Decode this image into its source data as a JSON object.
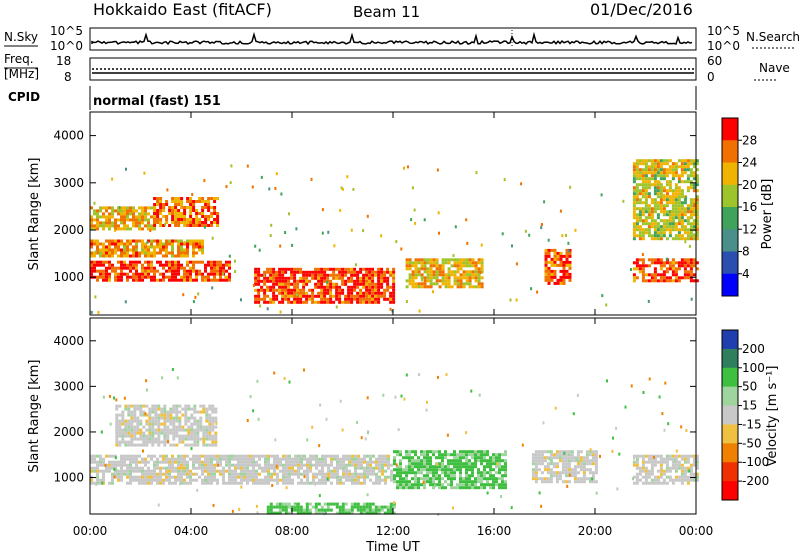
{
  "header": {
    "title": "Hokkaido East (fitACF)",
    "beam": "Beam 11",
    "date": "01/Dec/2016"
  },
  "status_panels": {
    "nsky_label": "N.Sky",
    "nsky_ticks": [
      "10^5",
      "10^0"
    ],
    "nsearch_label": "N.Search",
    "freq_label": "Freq.",
    "freq_unit": "[MHz]",
    "freq_ticks": [
      "18",
      "8"
    ],
    "nave_label": "Nave",
    "nave_ticks": [
      "60",
      "0"
    ],
    "cpid_label": "CPID",
    "cpid_value": "normal (fast) 151"
  },
  "chart_data": [
    {
      "type": "heatmap",
      "panel": "power",
      "ylabel": "Slant Range [km]",
      "ylim": [
        200,
        4500
      ],
      "yticks": [
        1000,
        2000,
        3000,
        4000
      ],
      "colorbar_label": "Power [dB]",
      "colorbar_ticks": [
        4,
        8,
        12,
        16,
        20,
        24,
        28
      ],
      "colorbar_colors": [
        "#0000ff",
        "#2a4fb0",
        "#4a8f8a",
        "#3fa35b",
        "#9ec42c",
        "#f0b400",
        "#f07000",
        "#ff0000"
      ],
      "regions": [
        {
          "t0": 0.0,
          "t1": 5.5,
          "r0": 950,
          "r1": 1350,
          "level": 28
        },
        {
          "t0": 0.0,
          "t1": 4.5,
          "r0": 1450,
          "r1": 1800,
          "level": 24
        },
        {
          "t0": 0.0,
          "t1": 2.5,
          "r0": 2000,
          "r1": 2500,
          "level": 22
        },
        {
          "t0": 2.5,
          "t1": 5.0,
          "r0": 2100,
          "r1": 2700,
          "level": 26
        },
        {
          "t0": 6.5,
          "t1": 12.0,
          "r0": 500,
          "r1": 1200,
          "level": 28
        },
        {
          "t0": 12.5,
          "t1": 15.5,
          "r0": 800,
          "r1": 1400,
          "level": 22
        },
        {
          "t0": 18.0,
          "t1": 19.0,
          "r0": 900,
          "r1": 1600,
          "level": 28
        },
        {
          "t0": 21.5,
          "t1": 24.0,
          "r0": 900,
          "r1": 1400,
          "level": 28
        },
        {
          "t0": 21.5,
          "t1": 24.0,
          "r0": 1800,
          "r1": 3500,
          "level": 20
        }
      ]
    },
    {
      "type": "heatmap",
      "panel": "velocity",
      "ylabel": "Slant Range [km]",
      "ylim": [
        200,
        4500
      ],
      "yticks": [
        1000,
        2000,
        3000,
        4000
      ],
      "xlabel": "Time UT",
      "xticks": [
        "00:00",
        "04:00",
        "08:00",
        "12:00",
        "16:00",
        "20:00",
        "00:00"
      ],
      "xlim_hours": [
        0,
        24
      ],
      "colorbar_label": "Velocity [m s⁻¹]",
      "colorbar_ticks": [
        200,
        100,
        50,
        15,
        -15,
        -50,
        -100,
        -200
      ],
      "colorbar_colors": [
        "#1f3fae",
        "#2f7f5f",
        "#3fbf3f",
        "#9fd49f",
        "#c8c8c8",
        "#f0c040",
        "#f08000",
        "#f03000",
        "#ff0000"
      ],
      "regions": [
        {
          "t0": 0.0,
          "t1": 12.0,
          "r0": 900,
          "r1": 1500,
          "value": 0
        },
        {
          "t0": 1.0,
          "t1": 5.0,
          "r0": 1700,
          "r1": 2600,
          "value": 0
        },
        {
          "t0": 12.0,
          "t1": 16.5,
          "r0": 800,
          "r1": 1600,
          "value": 60
        },
        {
          "t0": 7.0,
          "t1": 12.0,
          "r0": 250,
          "r1": 450,
          "value": 60
        },
        {
          "t0": 17.5,
          "t1": 20.0,
          "r0": 900,
          "r1": 1600,
          "value": 0
        },
        {
          "t0": 21.5,
          "t1": 24.0,
          "r0": 900,
          "r1": 1500,
          "value": 0
        }
      ]
    }
  ]
}
